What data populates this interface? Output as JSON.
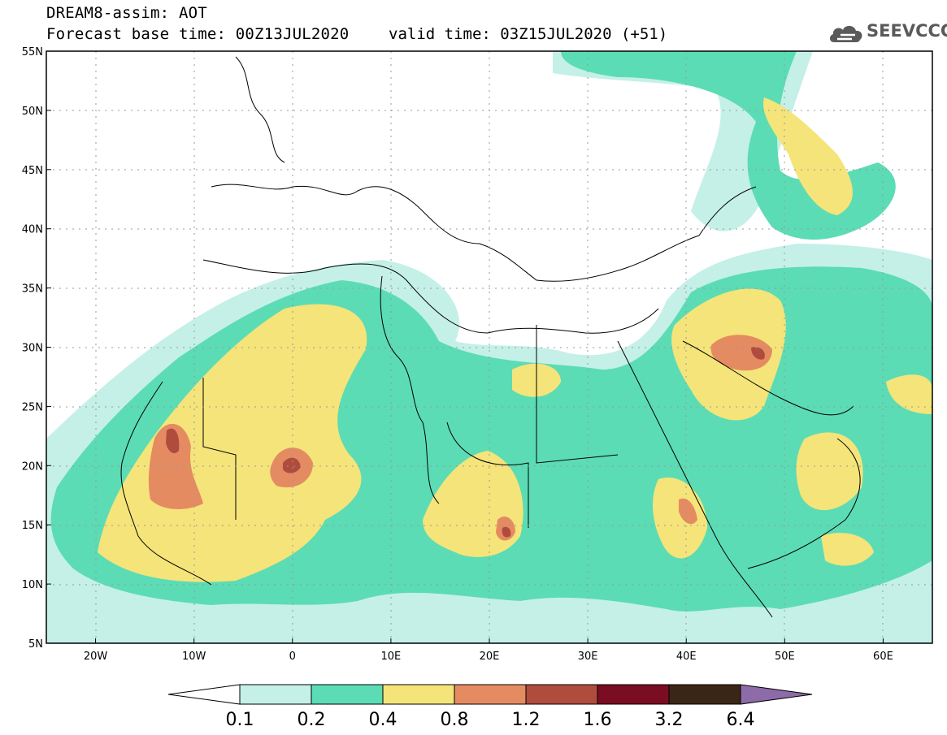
{
  "header": {
    "title": "DREAM8-assim: AOT",
    "base_time": "Forecast base time: 00Z13JUL2020",
    "valid_time": "valid time: 03Z15JUL2020 (+51)"
  },
  "logo": {
    "text": "SEEVCCC",
    "icon": "cloud-icon"
  },
  "map": {
    "projection": "lat-lon",
    "lon_range": [
      -25,
      65
    ],
    "lat_range": [
      5,
      55
    ],
    "lat_ticks": [
      "5N",
      "10N",
      "15N",
      "20N",
      "25N",
      "30N",
      "35N",
      "40N",
      "45N",
      "50N",
      "55N"
    ],
    "lon_ticks": [
      "20W",
      "10W",
      "0",
      "10E",
      "20E",
      "30E",
      "40E",
      "50E",
      "60E"
    ],
    "grid": "dotted"
  },
  "colorbar": {
    "labels": [
      "0.1",
      "0.2",
      "0.4",
      "0.8",
      "1.2",
      "1.6",
      "3.2",
      "6.4"
    ],
    "colors": [
      "#ffffff",
      "#c4f0e8",
      "#5cdcb4",
      "#f5e47a",
      "#e58b62",
      "#b04c3e",
      "#7a0d22",
      "#3b2616",
      "#8d6aa8"
    ]
  }
}
